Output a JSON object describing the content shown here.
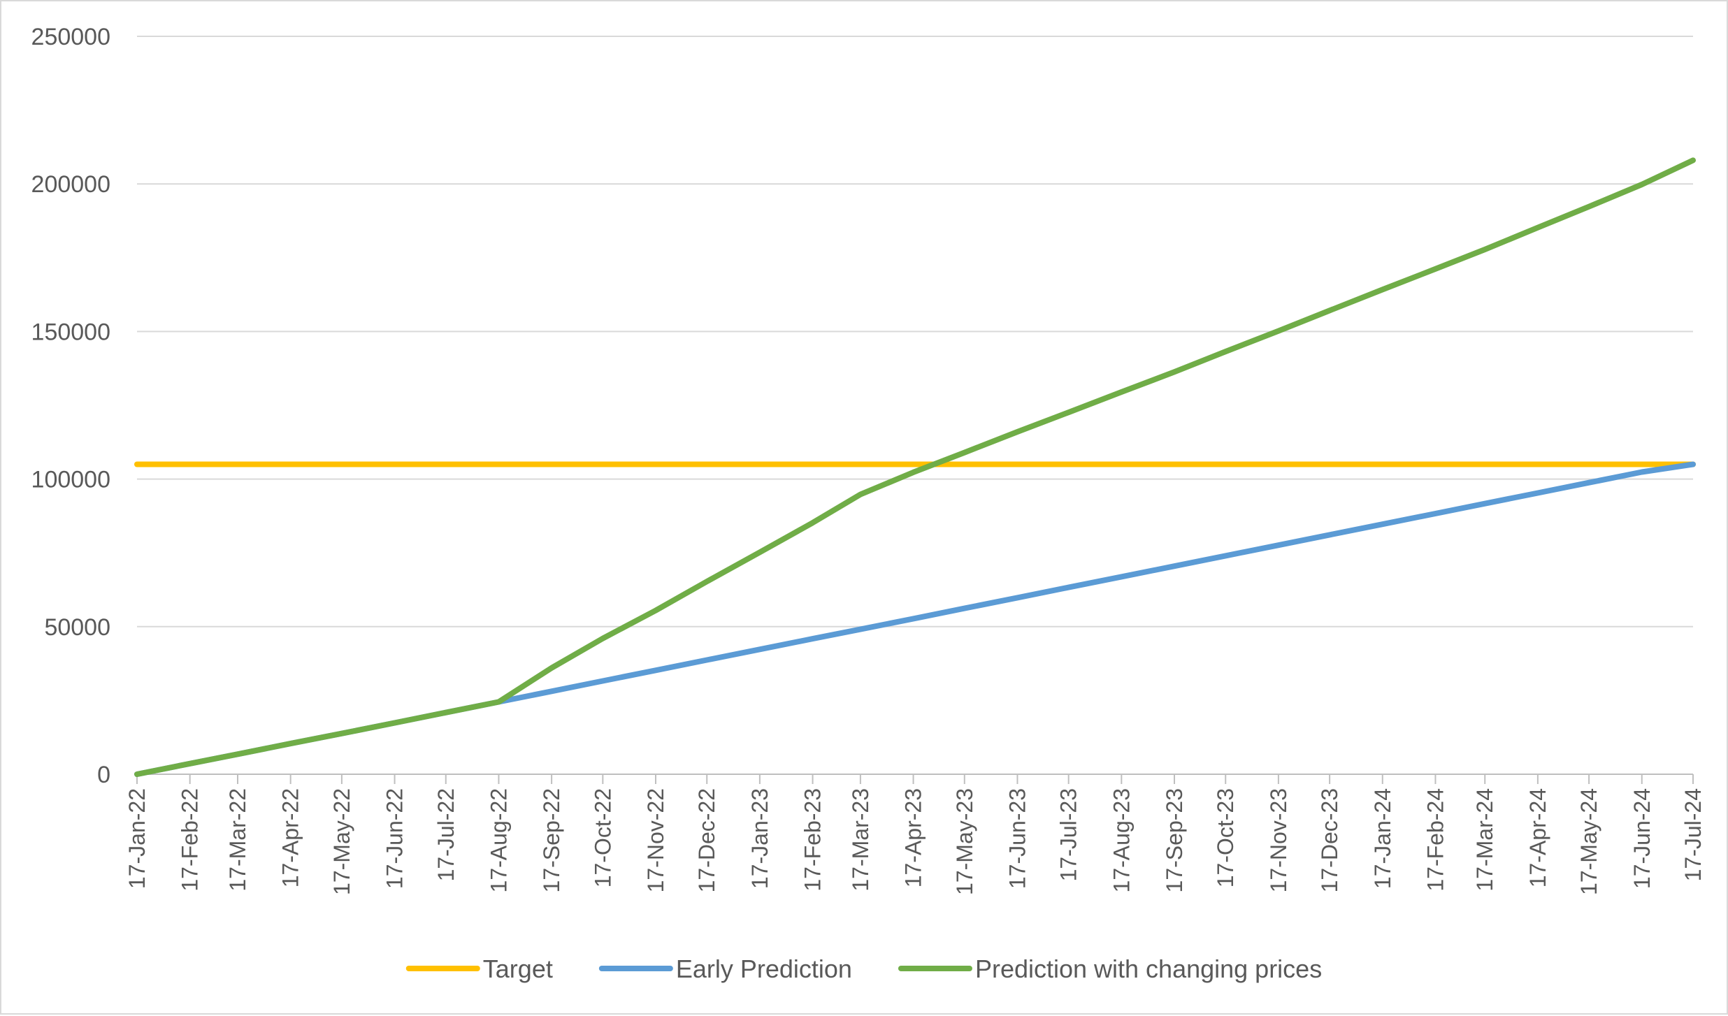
{
  "chart_data": {
    "type": "line",
    "title": "",
    "xlabel": "",
    "ylabel": "",
    "ylim": [
      0,
      250000
    ],
    "y_ticks": [
      0,
      50000,
      100000,
      150000,
      200000,
      250000
    ],
    "y_tick_labels": [
      "0",
      "50000",
      "100000",
      "150000",
      "200000",
      "250000"
    ],
    "grid": true,
    "legend_position": "bottom",
    "categories": [
      "17-Jan-22",
      "17-Feb-22",
      "17-Mar-22",
      "17-Apr-22",
      "17-May-22",
      "17-Jun-22",
      "17-Jul-22",
      "17-Aug-22",
      "17-Sep-22",
      "17-Oct-22",
      "17-Nov-22",
      "17-Dec-22",
      "17-Jan-23",
      "17-Feb-23",
      "17-Mar-23",
      "17-Apr-23",
      "17-May-23",
      "17-Jun-23",
      "17-Jul-23",
      "17-Aug-23",
      "17-Sep-23",
      "17-Oct-23",
      "17-Nov-23",
      "17-Dec-23",
      "17-Jan-24",
      "17-Feb-24",
      "17-Mar-24",
      "17-Apr-24",
      "17-May-24",
      "17-Jun-24",
      "17-Jul-24"
    ],
    "x_day_offsets": [
      0,
      31,
      59,
      90,
      120,
      151,
      181,
      212,
      243,
      273,
      304,
      334,
      365,
      396,
      424,
      455,
      485,
      516,
      546,
      577,
      608,
      638,
      669,
      699,
      730,
      761,
      790,
      821,
      851,
      882,
      912
    ],
    "series": [
      {
        "name": "Target",
        "color": "#ffc000",
        "values": [
          105000,
          105000,
          105000,
          105000,
          105000,
          105000,
          105000,
          105000,
          105000,
          105000,
          105000,
          105000,
          105000,
          105000,
          105000,
          105000,
          105000,
          105000,
          105000,
          105000,
          105000,
          105000,
          105000,
          105000,
          105000,
          105000,
          105000,
          105000,
          105000,
          105000,
          105000
        ]
      },
      {
        "name": "Early Prediction",
        "color": "#5b9bd5",
        "values": [
          0,
          3600,
          6800,
          10400,
          13800,
          17400,
          20900,
          24500,
          28100,
          31600,
          35200,
          38700,
          42300,
          45900,
          49100,
          52700,
          56200,
          59800,
          63300,
          66900,
          70500,
          74000,
          77600,
          81100,
          84700,
          88300,
          91700,
          95300,
          98800,
          102400,
          105000
        ]
      },
      {
        "name": "Prediction with changing prices",
        "color": "#70ad47",
        "values": [
          0,
          3600,
          6800,
          10400,
          13800,
          17400,
          20900,
          24500,
          36000,
          46000,
          55500,
          65300,
          75200,
          85200,
          94800,
          102300,
          109000,
          116000,
          122600,
          129500,
          136300,
          143200,
          150200,
          157100,
          164200,
          171200,
          177800,
          185200,
          192300,
          199800,
          208000
        ]
      }
    ]
  }
}
